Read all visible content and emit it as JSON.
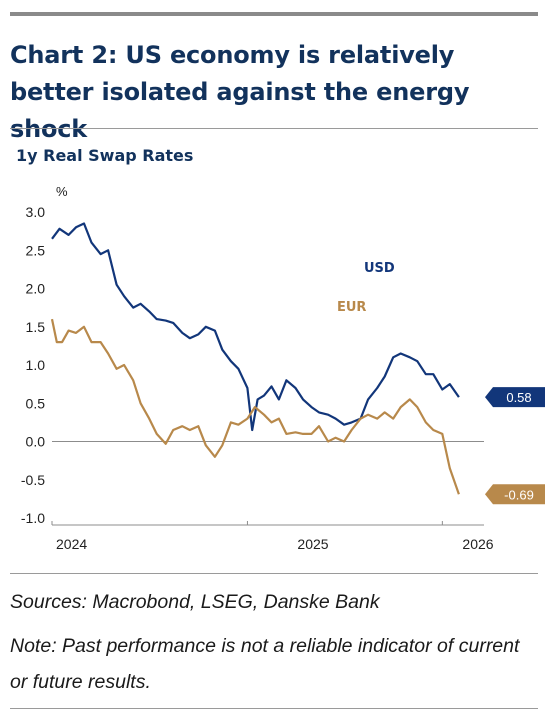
{
  "header": {
    "title": "Chart 2: US economy is relatively better isolated against the energy shock"
  },
  "chart_data": {
    "type": "line",
    "title": "1y Real Swap Rates",
    "ylabel": "%",
    "xlabel": "",
    "ylim": [
      -1.0,
      3.0
    ],
    "yticks": [
      3.0,
      2.5,
      2.0,
      1.5,
      1.0,
      0.5,
      0.0,
      -0.5,
      -1.0
    ],
    "ytick_labels": [
      "3.0",
      "2.5",
      "2.0",
      "1.5",
      "1.0",
      "0.5",
      "0.0",
      "-0.5",
      "-1.0"
    ],
    "xlim": [
      "2024-01-01",
      "2026-03-20"
    ],
    "xtick_labels": [
      "2024",
      "2025",
      "2026"
    ],
    "grid": false,
    "series": [
      {
        "name": "USD",
        "color": "#12367a",
        "end_label": "0.58",
        "points": [
          [
            "2024-01-01",
            2.65
          ],
          [
            "2024-01-15",
            2.78
          ],
          [
            "2024-02-01",
            2.7
          ],
          [
            "2024-02-15",
            2.8
          ],
          [
            "2024-03-01",
            2.85
          ],
          [
            "2024-03-15",
            2.6
          ],
          [
            "2024-04-01",
            2.45
          ],
          [
            "2024-04-15",
            2.5
          ],
          [
            "2024-05-01",
            2.05
          ],
          [
            "2024-05-15",
            1.9
          ],
          [
            "2024-06-01",
            1.75
          ],
          [
            "2024-06-15",
            1.8
          ],
          [
            "2024-07-01",
            1.7
          ],
          [
            "2024-07-15",
            1.6
          ],
          [
            "2024-08-01",
            1.58
          ],
          [
            "2024-08-15",
            1.55
          ],
          [
            "2024-09-01",
            1.42
          ],
          [
            "2024-09-15",
            1.35
          ],
          [
            "2024-10-01",
            1.4
          ],
          [
            "2024-10-15",
            1.5
          ],
          [
            "2024-11-01",
            1.45
          ],
          [
            "2024-11-15",
            1.2
          ],
          [
            "2024-12-01",
            1.05
          ],
          [
            "2024-12-15",
            0.95
          ],
          [
            "2025-01-01",
            0.7
          ],
          [
            "2025-01-10",
            0.15
          ],
          [
            "2025-01-20",
            0.55
          ],
          [
            "2025-02-01",
            0.6
          ],
          [
            "2025-02-15",
            0.72
          ],
          [
            "2025-03-01",
            0.55
          ],
          [
            "2025-03-15",
            0.8
          ],
          [
            "2025-04-01",
            0.7
          ],
          [
            "2025-04-15",
            0.55
          ],
          [
            "2025-05-01",
            0.45
          ],
          [
            "2025-05-15",
            0.38
          ],
          [
            "2025-06-01",
            0.35
          ],
          [
            "2025-06-15",
            0.3
          ],
          [
            "2025-07-01",
            0.22
          ],
          [
            "2025-07-15",
            0.25
          ],
          [
            "2025-08-01",
            0.3
          ],
          [
            "2025-08-15",
            0.55
          ],
          [
            "2025-09-01",
            0.7
          ],
          [
            "2025-09-15",
            0.85
          ],
          [
            "2025-10-01",
            1.1
          ],
          [
            "2025-10-15",
            1.15
          ],
          [
            "2025-11-01",
            1.1
          ],
          [
            "2025-11-15",
            1.05
          ],
          [
            "2025-12-01",
            0.88
          ],
          [
            "2025-12-15",
            0.88
          ],
          [
            "2026-01-01",
            0.68
          ],
          [
            "2026-01-15",
            0.75
          ],
          [
            "2026-02-01",
            0.58
          ]
        ]
      },
      {
        "name": "EUR",
        "color": "#b8894b",
        "end_label": "-0.69",
        "points": [
          [
            "2024-01-01",
            1.6
          ],
          [
            "2024-01-10",
            1.3
          ],
          [
            "2024-01-20",
            1.3
          ],
          [
            "2024-02-01",
            1.45
          ],
          [
            "2024-02-15",
            1.42
          ],
          [
            "2024-03-01",
            1.5
          ],
          [
            "2024-03-15",
            1.3
          ],
          [
            "2024-04-01",
            1.3
          ],
          [
            "2024-04-15",
            1.15
          ],
          [
            "2024-05-01",
            0.95
          ],
          [
            "2024-05-15",
            1.0
          ],
          [
            "2024-06-01",
            0.8
          ],
          [
            "2024-06-15",
            0.5
          ],
          [
            "2024-07-01",
            0.3
          ],
          [
            "2024-07-15",
            0.1
          ],
          [
            "2024-08-01",
            -0.03
          ],
          [
            "2024-08-15",
            0.15
          ],
          [
            "2024-09-01",
            0.2
          ],
          [
            "2024-09-15",
            0.15
          ],
          [
            "2024-10-01",
            0.2
          ],
          [
            "2024-10-15",
            -0.05
          ],
          [
            "2024-11-01",
            -0.2
          ],
          [
            "2024-11-15",
            -0.05
          ],
          [
            "2024-12-01",
            0.25
          ],
          [
            "2024-12-15",
            0.22
          ],
          [
            "2025-01-01",
            0.3
          ],
          [
            "2025-01-15",
            0.45
          ],
          [
            "2025-02-01",
            0.35
          ],
          [
            "2025-02-15",
            0.25
          ],
          [
            "2025-03-01",
            0.3
          ],
          [
            "2025-03-15",
            0.1
          ],
          [
            "2025-04-01",
            0.12
          ],
          [
            "2025-04-15",
            0.1
          ],
          [
            "2025-05-01",
            0.1
          ],
          [
            "2025-05-15",
            0.2
          ],
          [
            "2025-06-01",
            0.0
          ],
          [
            "2025-06-15",
            0.05
          ],
          [
            "2025-07-01",
            0.0
          ],
          [
            "2025-07-15",
            0.15
          ],
          [
            "2025-08-01",
            0.3
          ],
          [
            "2025-08-15",
            0.35
          ],
          [
            "2025-09-01",
            0.3
          ],
          [
            "2025-09-15",
            0.38
          ],
          [
            "2025-10-01",
            0.3
          ],
          [
            "2025-10-15",
            0.45
          ],
          [
            "2025-11-01",
            0.55
          ],
          [
            "2025-11-15",
            0.45
          ],
          [
            "2025-12-01",
            0.25
          ],
          [
            "2025-12-15",
            0.15
          ],
          [
            "2026-01-01",
            0.1
          ],
          [
            "2026-01-15",
            -0.35
          ],
          [
            "2026-02-01",
            -0.69
          ]
        ]
      }
    ],
    "annotations": [
      "USD",
      "EUR"
    ]
  },
  "footer": {
    "sources": "Sources: Macrobond, LSEG, Danske Bank",
    "note": "Note: Past performance is not a reliable indicator of current or future results."
  }
}
